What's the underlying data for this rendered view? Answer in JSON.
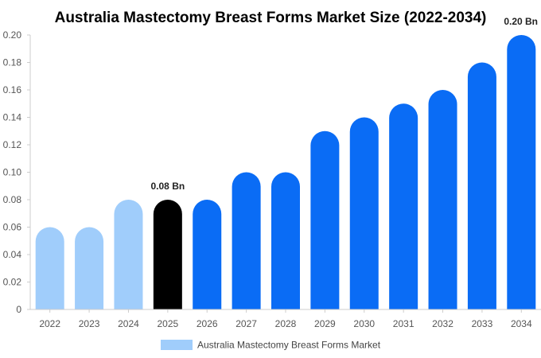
{
  "chart_data": {
    "type": "bar",
    "title": "Australia Mastectomy Breast Forms Market Size (2022-2034)",
    "xlabel": "",
    "ylabel": "",
    "categories": [
      "2022",
      "2023",
      "2024",
      "2025",
      "2026",
      "2027",
      "2028",
      "2029",
      "2030",
      "2031",
      "2032",
      "2033",
      "2034"
    ],
    "series": [
      {
        "name": "Australia Mastectomy Breast Forms Market",
        "values": [
          0.06,
          0.06,
          0.08,
          0.08,
          0.08,
          0.1,
          0.1,
          0.13,
          0.14,
          0.15,
          0.16,
          0.18,
          0.2
        ]
      }
    ],
    "ylim": [
      0,
      0.2
    ],
    "yticks": [
      0,
      0.02,
      0.04,
      0.06,
      0.08,
      0.1,
      0.12,
      0.14,
      0.16,
      0.18,
      0.2
    ],
    "ytick_labels": [
      "0",
      "0.02",
      "0.04",
      "0.06",
      "0.08",
      "0.10",
      "0.12",
      "0.14",
      "0.16",
      "0.18",
      "0.20"
    ],
    "data_labels": [
      {
        "category": "2025",
        "text": "0.08 Bn"
      },
      {
        "category": "2034",
        "text": "0.20 Bn"
      }
    ],
    "bar_colors": {
      "historical": "#a0cdfb",
      "base_year": "#000000",
      "forecast": "#0a6cf5"
    },
    "historical_categories": [
      "2022",
      "2023",
      "2024"
    ],
    "base_year": "2025",
    "legend": {
      "position": "bottom",
      "label": "Australia Mastectomy Breast Forms Market",
      "color": "#a0cdfb"
    },
    "grid": false
  }
}
